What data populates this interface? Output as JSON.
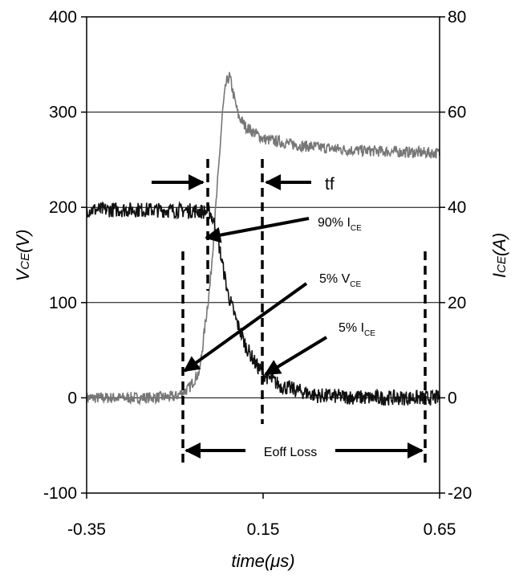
{
  "chart_data": {
    "type": "line",
    "x_axis": {
      "label": "time(μs)",
      "ticks": [
        -0.35,
        0.15,
        0.65
      ],
      "tick_labels": [
        "-0.35",
        "0.15",
        "0.65"
      ],
      "range": [
        -0.35,
        0.65
      ]
    },
    "y_left": {
      "label_main": "V",
      "label_sub": "CE",
      "label_rest": "(V)",
      "ticks": [
        -100,
        0,
        100,
        200,
        300,
        400
      ],
      "tick_labels": [
        "-100",
        "0",
        "100",
        "200",
        "300",
        "400"
      ],
      "range": [
        -100,
        400
      ]
    },
    "y_right": {
      "label_main": "I",
      "label_sub": "CE",
      "label_rest": "(A)",
      "ticks": [
        -20,
        0,
        20,
        40,
        60,
        80
      ],
      "tick_labels": [
        "-20",
        "0",
        "20",
        "40",
        "60",
        "80"
      ],
      "range": [
        -20,
        80
      ]
    },
    "grid": "horizontal",
    "series": [
      {
        "axis": "left",
        "color": "#777777",
        "points": [
          [
            -0.35,
            0
          ],
          [
            -0.2,
            0
          ],
          [
            -0.1,
            1
          ],
          [
            -0.06,
            10
          ],
          [
            -0.03,
            28
          ],
          [
            0.0,
            120
          ],
          [
            0.02,
            220
          ],
          [
            0.035,
            300
          ],
          [
            0.045,
            330
          ],
          [
            0.055,
            338
          ],
          [
            0.065,
            320
          ],
          [
            0.08,
            296
          ],
          [
            0.1,
            285
          ],
          [
            0.15,
            272
          ],
          [
            0.25,
            265
          ],
          [
            0.4,
            260
          ],
          [
            0.55,
            258
          ],
          [
            0.65,
            257
          ]
        ]
      },
      {
        "axis": "right",
        "color": "#111111",
        "points": [
          [
            -0.35,
            39.5
          ],
          [
            -0.2,
            39.5
          ],
          [
            -0.05,
            39.3
          ],
          [
            0.0,
            39
          ],
          [
            0.015,
            36
          ],
          [
            0.03,
            30
          ],
          [
            0.05,
            22
          ],
          [
            0.075,
            16
          ],
          [
            0.1,
            11
          ],
          [
            0.13,
            7
          ],
          [
            0.15,
            5
          ],
          [
            0.2,
            2.5
          ],
          [
            0.3,
            0.5
          ],
          [
            0.45,
            0
          ],
          [
            0.65,
            0
          ]
        ]
      }
    ],
    "annotations": [
      {
        "text": "tf"
      },
      {
        "main": "90% I",
        "sub": "CE"
      },
      {
        "main": "5% V",
        "sub": "CE"
      },
      {
        "main": "5% I",
        "sub": "CE"
      },
      {
        "text": "Eoff Loss"
      }
    ]
  }
}
